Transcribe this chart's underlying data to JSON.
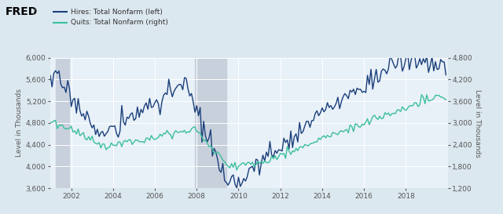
{
  "legend_hires": "Hires: Total Nonfarm (left)",
  "legend_quits": "Quits: Total Nonfarm (right)",
  "hires_color": "#1a3f7a",
  "quits_color": "#3abf9a",
  "background_color": "#dce8f0",
  "plot_bg_color": "#e8f0f8",
  "shade_color": "#c8d0dc",
  "shade1_start": 2001.25,
  "shade1_end": 2001.92,
  "shade2_start": 2007.92,
  "shade2_end": 2009.42,
  "ylim_left": [
    3600,
    6000
  ],
  "ylim_right": [
    1200,
    4800
  ],
  "yticks_left": [
    3600,
    4000,
    4400,
    4800,
    5200,
    5600,
    6000
  ],
  "yticks_right": [
    1200,
    1800,
    2400,
    3000,
    3600,
    4200,
    4800
  ],
  "xlim": [
    2001.0,
    2020.0
  ],
  "xticks": [
    2002,
    2004,
    2006,
    2008,
    2010,
    2012,
    2014,
    2016,
    2018
  ],
  "ylabel_left": "Level in Thousands",
  "ylabel_right": "Level in Thousands",
  "linewidth": 1.0
}
